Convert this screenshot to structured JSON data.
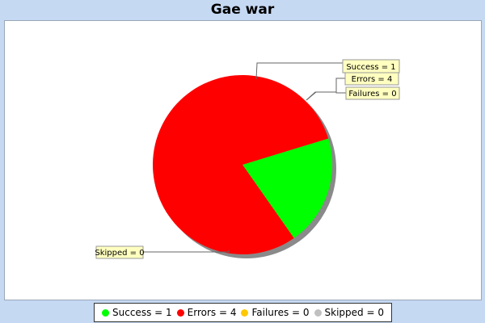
{
  "chart_data": {
    "type": "pie",
    "title": "Gae war",
    "slices": [
      {
        "name": "Success",
        "value": 1,
        "label": "Success = 1",
        "color": "#00ff00"
      },
      {
        "name": "Errors",
        "value": 4,
        "label": "Errors = 4",
        "color": "#ff0000"
      },
      {
        "name": "Failures",
        "value": 0,
        "label": "Failures = 0",
        "color": "#ffc800"
      },
      {
        "name": "Skipped",
        "value": 0,
        "label": "Skipped = 0",
        "color": "#c0c0c0"
      }
    ],
    "legend": {
      "placement": "bottom",
      "items": [
        {
          "label": "Success = 1",
          "color": "#00ff00"
        },
        {
          "label": "Errors = 4",
          "color": "#ff0000"
        },
        {
          "label": "Failures = 0",
          "color": "#ffc800"
        },
        {
          "label": "Skipped = 0",
          "color": "#c0c0c0"
        }
      ]
    },
    "label_box_color": "#ffffc0"
  }
}
